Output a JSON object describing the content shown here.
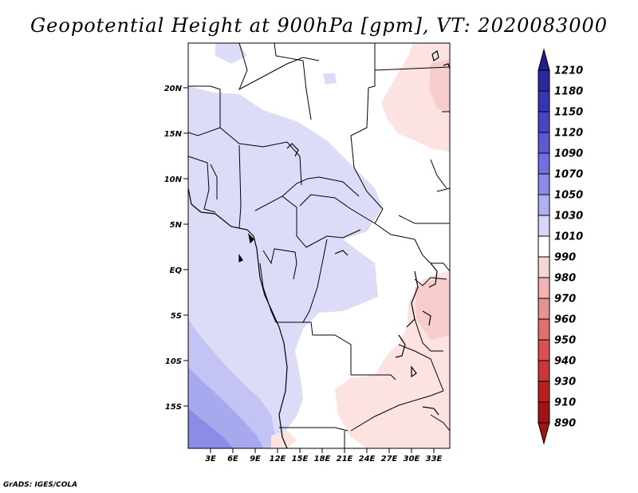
{
  "title": "Geopotential Height at 900hPa [gpm], VT: 2020083000",
  "credit": "GrADS: IGES/COLA",
  "lat_labels": [
    "20N",
    "15N",
    "10N",
    "5N",
    "EQ",
    "5S",
    "10S",
    "15S"
  ],
  "lon_labels": [
    "3E",
    "6E",
    "9E",
    "12E",
    "15E",
    "18E",
    "21E",
    "24E",
    "27E",
    "30E",
    "33E"
  ],
  "colorbar": {
    "levels": [
      "1210",
      "1180",
      "1150",
      "1120",
      "1090",
      "1070",
      "1050",
      "1030",
      "1010",
      "990",
      "980",
      "970",
      "960",
      "950",
      "940",
      "930",
      "910",
      "890"
    ],
    "colors": [
      "#1e1e8c",
      "#2a2aa0",
      "#3636b4",
      "#4646c4",
      "#5a5ad4",
      "#7070e0",
      "#8c8ce8",
      "#b0b0f0",
      "#d6d6f8",
      "#ffffff",
      "#f8d6d6",
      "#f0b4b4",
      "#e89292",
      "#e07070",
      "#d85050",
      "#cc3636",
      "#b82020",
      "#a01414"
    ]
  }
}
